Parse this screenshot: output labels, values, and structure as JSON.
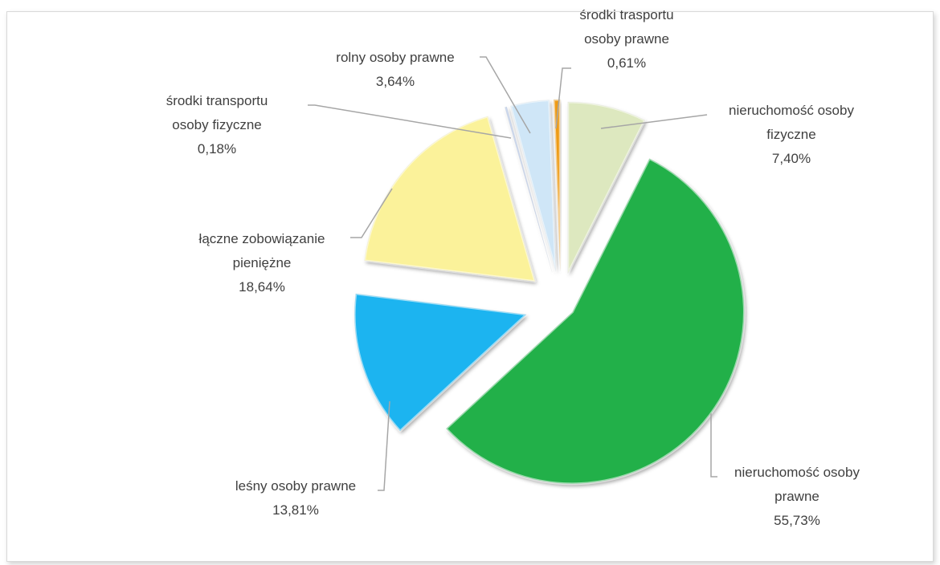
{
  "chart_data": {
    "type": "pie",
    "slices": [
      {
        "label": [
          "nieruchomość osoby",
          "fizyczne"
        ],
        "value": 7.4,
        "display": "7,40%",
        "color": "#dde8bf"
      },
      {
        "label": [
          "nieruchomość osoby",
          "prawne"
        ],
        "value": 55.73,
        "display": "55,73%",
        "color": "#22b04a"
      },
      {
        "label": [
          "leśny osoby prawne"
        ],
        "value": 13.81,
        "display": "13,81%",
        "color": "#1fb4f0"
      },
      {
        "label": [
          "łączne zobowiązanie",
          "pieniężne"
        ],
        "value": 18.64,
        "display": "18,64%",
        "color": "#fbf29a"
      },
      {
        "label": [
          "środki transportu",
          "osoby fizyczne"
        ],
        "value": 0.18,
        "display": "0,18%",
        "color": "#8ea8d8"
      },
      {
        "label": [
          "rolny osoby prawne"
        ],
        "value": 3.64,
        "display": "3,64%",
        "color": "#cfe6f7"
      },
      {
        "label": [
          "środki trasportu",
          "osoby prawne"
        ],
        "value": 0.61,
        "display": "0,61%",
        "color": "#ee9b16"
      }
    ],
    "start_angle_deg": 0,
    "direction": "clockwise",
    "exploded": true,
    "style": "3d-bevel"
  }
}
